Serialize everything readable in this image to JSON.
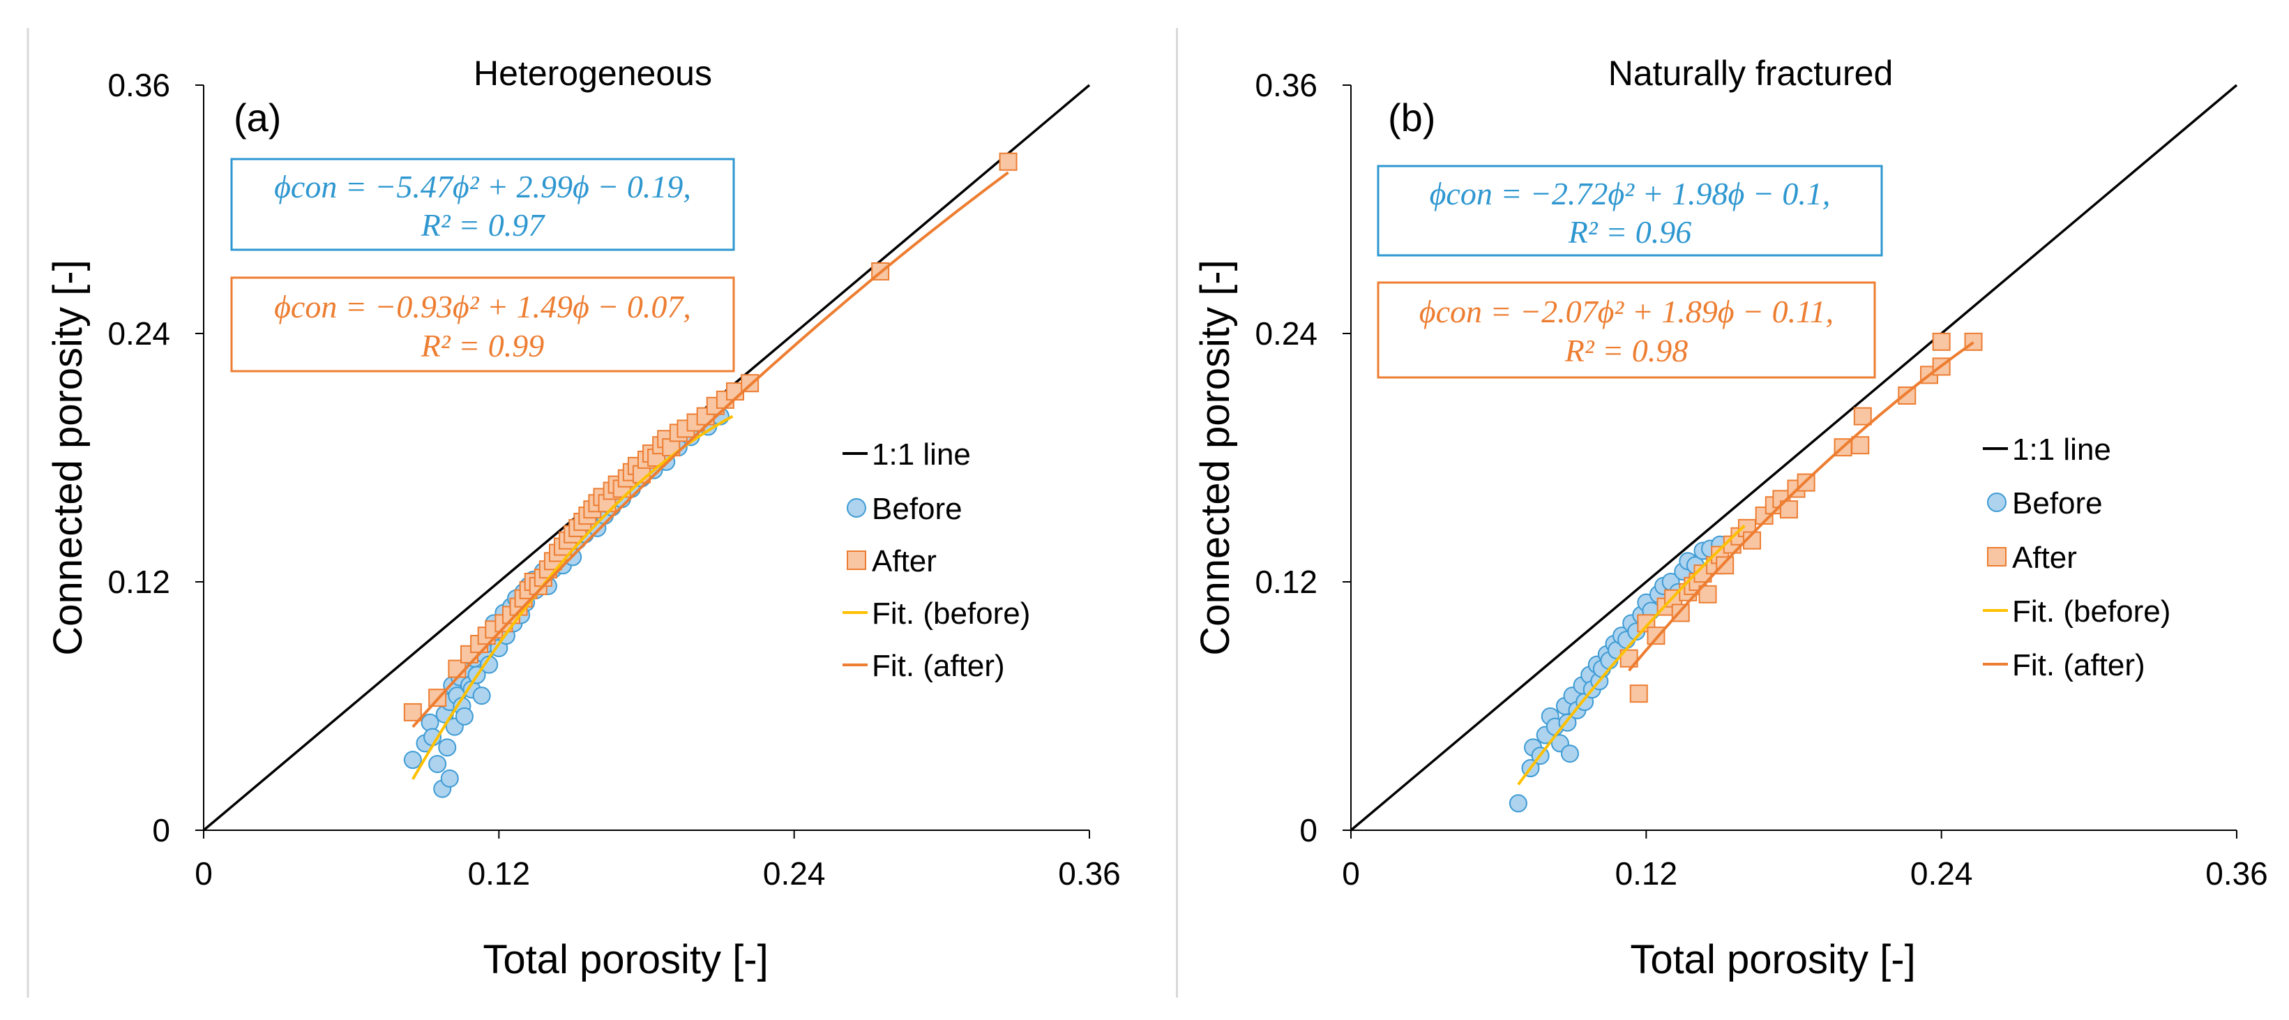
{
  "colors": {
    "before_fill": "#aed3ef",
    "before_stroke": "#3d9bd4",
    "after_fill": "#f8c6a3",
    "after_stroke": "#ed7d31",
    "fit_before": "#ffc000",
    "fit_after": "#ed7d31",
    "identity": "#000000",
    "eq_before": "#2e97d0",
    "eq_after": "#ed7d31"
  },
  "chart_data": [
    {
      "type": "scatter",
      "panel_label": "(a)",
      "title": "Heterogeneous",
      "xlabel": "Total porosity [-]",
      "ylabel": "Connected porosity [-]",
      "xlim": [
        0,
        0.36
      ],
      "ylim": [
        0,
        0.36
      ],
      "xticks": [
        "0",
        "0.12",
        "0.24",
        "0.36"
      ],
      "yticks": [
        "0",
        "0.12",
        "0.24",
        "0.36"
      ],
      "grid": false,
      "legend_position": "right",
      "legend": [
        "1:1 line",
        "Before",
        "After",
        "Fit. (before)",
        "Fit. (after)"
      ],
      "equations": {
        "before_line1": "ϕcon = −5.47ϕ² + 2.99ϕ − 0.19,",
        "before_line2": "R² = 0.97",
        "after_line1": "ϕcon = −0.93ϕ² + 1.49ϕ − 0.07,",
        "after_line2": "R² = 0.99"
      },
      "fits": {
        "before": {
          "a": -5.47,
          "b": 2.99,
          "c": -0.19,
          "x_range": [
            0.085,
            0.215
          ]
        },
        "after": {
          "a": -0.93,
          "b": 1.49,
          "c": -0.07,
          "x_range": [
            0.085,
            0.327
          ]
        }
      },
      "series": [
        {
          "name": "Before",
          "marker": "circle",
          "points": [
            [
              0.085,
              0.034
            ],
            [
              0.09,
              0.042
            ],
            [
              0.092,
              0.052
            ],
            [
              0.093,
              0.045
            ],
            [
              0.095,
              0.032
            ],
            [
              0.097,
              0.02
            ],
            [
              0.098,
              0.056
            ],
            [
              0.099,
              0.04
            ],
            [
              0.1,
              0.062
            ],
            [
              0.1,
              0.025
            ],
            [
              0.101,
              0.07
            ],
            [
              0.102,
              0.05
            ],
            [
              0.103,
              0.065
            ],
            [
              0.104,
              0.074
            ],
            [
              0.105,
              0.06
            ],
            [
              0.106,
              0.055
            ],
            [
              0.107,
              0.078
            ],
            [
              0.108,
              0.07
            ],
            [
              0.109,
              0.068
            ],
            [
              0.11,
              0.083
            ],
            [
              0.111,
              0.075
            ],
            [
              0.112,
              0.088
            ],
            [
              0.113,
              0.065
            ],
            [
              0.114,
              0.085
            ],
            [
              0.115,
              0.09
            ],
            [
              0.116,
              0.08
            ],
            [
              0.117,
              0.095
            ],
            [
              0.118,
              0.1
            ],
            [
              0.119,
              0.092
            ],
            [
              0.12,
              0.088
            ],
            [
              0.121,
              0.098
            ],
            [
              0.122,
              0.105
            ],
            [
              0.123,
              0.094
            ],
            [
              0.125,
              0.108
            ],
            [
              0.126,
              0.1
            ],
            [
              0.127,
              0.112
            ],
            [
              0.128,
              0.106
            ],
            [
              0.129,
              0.104
            ],
            [
              0.13,
              0.115
            ],
            [
              0.131,
              0.11
            ],
            [
              0.132,
              0.118
            ],
            [
              0.134,
              0.121
            ],
            [
              0.135,
              0.116
            ],
            [
              0.137,
              0.12
            ],
            [
              0.138,
              0.125
            ],
            [
              0.14,
              0.118
            ],
            [
              0.142,
              0.126
            ],
            [
              0.144,
              0.13
            ],
            [
              0.146,
              0.128
            ],
            [
              0.148,
              0.135
            ],
            [
              0.15,
              0.132
            ],
            [
              0.152,
              0.14
            ],
            [
              0.155,
              0.143
            ],
            [
              0.158,
              0.148
            ],
            [
              0.16,
              0.146
            ],
            [
              0.163,
              0.152
            ],
            [
              0.166,
              0.156
            ],
            [
              0.17,
              0.16
            ],
            [
              0.174,
              0.165
            ],
            [
              0.178,
              0.17
            ],
            [
              0.183,
              0.174
            ],
            [
              0.188,
              0.178
            ],
            [
              0.193,
              0.185
            ],
            [
              0.198,
              0.19
            ],
            [
              0.205,
              0.195
            ],
            [
              0.21,
              0.2
            ]
          ]
        },
        {
          "name": "After",
          "marker": "square",
          "points": [
            [
              0.085,
              0.057
            ],
            [
              0.095,
              0.064
            ],
            [
              0.103,
              0.078
            ],
            [
              0.108,
              0.085
            ],
            [
              0.112,
              0.09
            ],
            [
              0.115,
              0.094
            ],
            [
              0.118,
              0.097
            ],
            [
              0.122,
              0.1
            ],
            [
              0.125,
              0.104
            ],
            [
              0.128,
              0.108
            ],
            [
              0.13,
              0.112
            ],
            [
              0.132,
              0.116
            ],
            [
              0.134,
              0.12
            ],
            [
              0.136,
              0.118
            ],
            [
              0.138,
              0.122
            ],
            [
              0.14,
              0.126
            ],
            [
              0.142,
              0.13
            ],
            [
              0.144,
              0.134
            ],
            [
              0.146,
              0.137
            ],
            [
              0.148,
              0.14
            ],
            [
              0.15,
              0.143
            ],
            [
              0.152,
              0.146
            ],
            [
              0.154,
              0.149
            ],
            [
              0.156,
              0.152
            ],
            [
              0.158,
              0.155
            ],
            [
              0.16,
              0.158
            ],
            [
              0.162,
              0.161
            ],
            [
              0.164,
              0.158
            ],
            [
              0.166,
              0.164
            ],
            [
              0.168,
              0.167
            ],
            [
              0.17,
              0.165
            ],
            [
              0.172,
              0.17
            ],
            [
              0.174,
              0.173
            ],
            [
              0.176,
              0.176
            ],
            [
              0.178,
              0.172
            ],
            [
              0.18,
              0.179
            ],
            [
              0.182,
              0.182
            ],
            [
              0.184,
              0.18
            ],
            [
              0.186,
              0.186
            ],
            [
              0.188,
              0.189
            ],
            [
              0.19,
              0.185
            ],
            [
              0.193,
              0.192
            ],
            [
              0.196,
              0.194
            ],
            [
              0.2,
              0.197
            ],
            [
              0.204,
              0.2
            ],
            [
              0.208,
              0.205
            ],
            [
              0.212,
              0.208
            ],
            [
              0.216,
              0.212
            ],
            [
              0.222,
              0.216
            ],
            [
              0.275,
              0.27
            ],
            [
              0.327,
              0.323
            ]
          ]
        }
      ]
    },
    {
      "type": "scatter",
      "panel_label": "(b)",
      "title": "Naturally fractured",
      "xlabel": "Total porosity [-]",
      "ylabel": "Connected porosity [-]",
      "xlim": [
        0,
        0.36
      ],
      "ylim": [
        0,
        0.36
      ],
      "xticks": [
        "0",
        "0.12",
        "0.24",
        "0.36"
      ],
      "yticks": [
        "0",
        "0.12",
        "0.24",
        "0.36"
      ],
      "grid": false,
      "legend_position": "right",
      "legend": [
        "1:1 line",
        "Before",
        "After",
        "Fit. (before)",
        "Fit. (after)"
      ],
      "equations": {
        "before_line1": "ϕcon = −2.72ϕ² + 1.98ϕ − 0.1,",
        "before_line2": "R² = 0.96",
        "after_line1": "ϕcon = −2.07ϕ² + 1.89ϕ − 0.11,",
        "after_line2": "R² = 0.98"
      },
      "fits": {
        "before": {
          "a": -2.72,
          "b": 1.98,
          "c": -0.1,
          "x_range": [
            0.068,
            0.16
          ]
        },
        "after": {
          "a": -2.07,
          "b": 1.89,
          "c": -0.11,
          "x_range": [
            0.113,
            0.253
          ]
        }
      },
      "series": [
        {
          "name": "Before",
          "marker": "circle",
          "points": [
            [
              0.068,
              0.013
            ],
            [
              0.073,
              0.03
            ],
            [
              0.074,
              0.04
            ],
            [
              0.077,
              0.036
            ],
            [
              0.079,
              0.046
            ],
            [
              0.081,
              0.055
            ],
            [
              0.083,
              0.05
            ],
            [
              0.085,
              0.042
            ],
            [
              0.087,
              0.06
            ],
            [
              0.088,
              0.052
            ],
            [
              0.089,
              0.037
            ],
            [
              0.09,
              0.065
            ],
            [
              0.092,
              0.058
            ],
            [
              0.094,
              0.07
            ],
            [
              0.095,
              0.062
            ],
            [
              0.097,
              0.075
            ],
            [
              0.098,
              0.068
            ],
            [
              0.1,
              0.08
            ],
            [
              0.101,
              0.072
            ],
            [
              0.102,
              0.078
            ],
            [
              0.104,
              0.085
            ],
            [
              0.105,
              0.082
            ],
            [
              0.107,
              0.09
            ],
            [
              0.108,
              0.087
            ],
            [
              0.11,
              0.094
            ],
            [
              0.112,
              0.092
            ],
            [
              0.114,
              0.1
            ],
            [
              0.116,
              0.096
            ],
            [
              0.118,
              0.104
            ],
            [
              0.12,
              0.11
            ],
            [
              0.122,
              0.106
            ],
            [
              0.125,
              0.114
            ],
            [
              0.127,
              0.118
            ],
            [
              0.13,
              0.12
            ],
            [
              0.133,
              0.115
            ],
            [
              0.135,
              0.125
            ],
            [
              0.137,
              0.13
            ],
            [
              0.14,
              0.128
            ],
            [
              0.143,
              0.135
            ],
            [
              0.146,
              0.136
            ],
            [
              0.15,
              0.138
            ]
          ]
        },
        {
          "name": "After",
          "marker": "square",
          "points": [
            [
              0.113,
              0.083
            ],
            [
              0.117,
              0.066
            ],
            [
              0.12,
              0.1
            ],
            [
              0.124,
              0.094
            ],
            [
              0.128,
              0.108
            ],
            [
              0.131,
              0.112
            ],
            [
              0.134,
              0.105
            ],
            [
              0.137,
              0.115
            ],
            [
              0.139,
              0.118
            ],
            [
              0.141,
              0.12
            ],
            [
              0.143,
              0.124
            ],
            [
              0.145,
              0.114
            ],
            [
              0.148,
              0.128
            ],
            [
              0.15,
              0.133
            ],
            [
              0.152,
              0.128
            ],
            [
              0.155,
              0.138
            ],
            [
              0.158,
              0.142
            ],
            [
              0.161,
              0.146
            ],
            [
              0.163,
              0.14
            ],
            [
              0.168,
              0.152
            ],
            [
              0.172,
              0.157
            ],
            [
              0.175,
              0.16
            ],
            [
              0.178,
              0.155
            ],
            [
              0.181,
              0.165
            ],
            [
              0.185,
              0.168
            ],
            [
              0.2,
              0.185
            ],
            [
              0.207,
              0.186
            ],
            [
              0.208,
              0.2
            ],
            [
              0.226,
              0.21
            ],
            [
              0.235,
              0.22
            ],
            [
              0.24,
              0.224
            ],
            [
              0.24,
              0.236
            ],
            [
              0.253,
              0.236
            ]
          ]
        }
      ]
    }
  ]
}
